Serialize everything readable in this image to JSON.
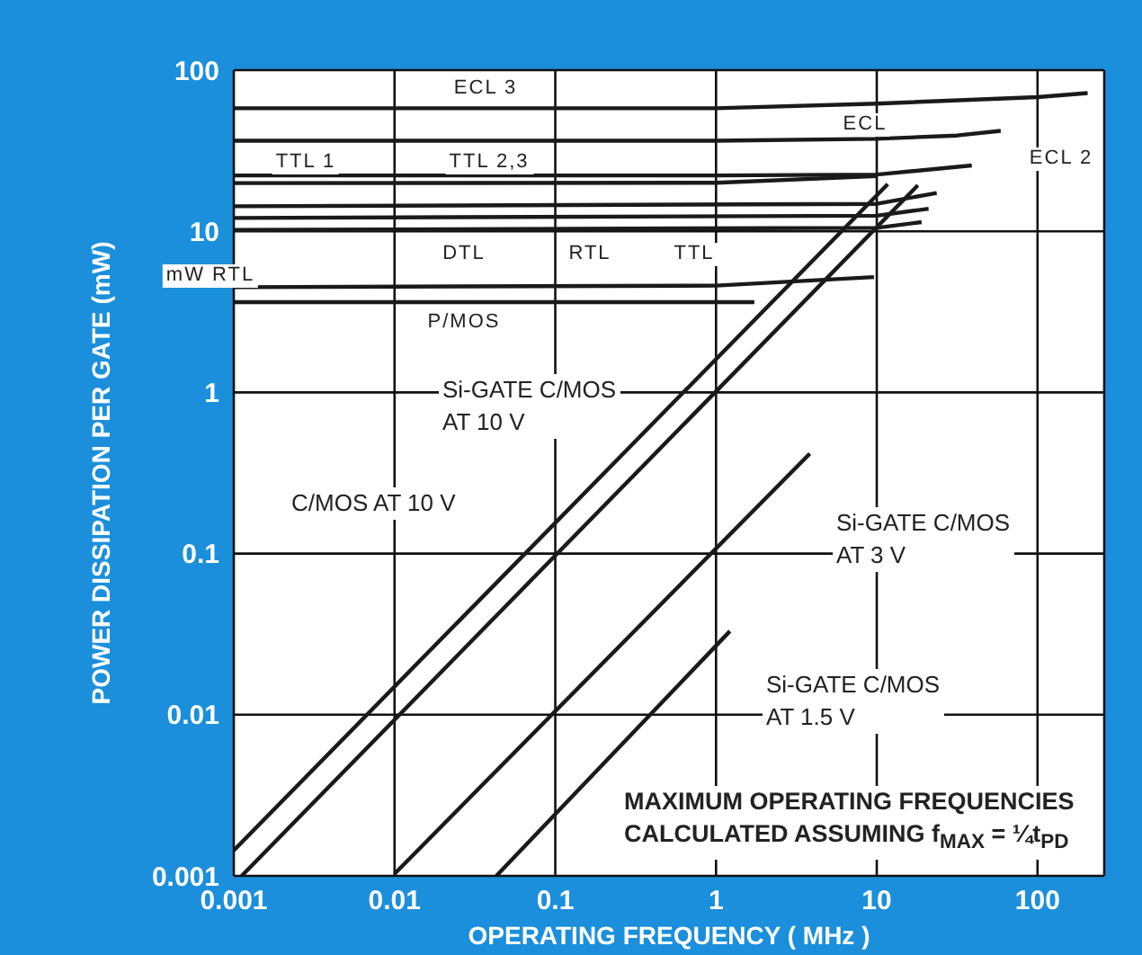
{
  "chart_data": {
    "type": "line",
    "xlabel": "OPERATING FREQUENCY ( MHz )",
    "ylabel": "POWER DISSIPATION PER GATE (mW)",
    "log": "xy",
    "grid": true,
    "marker": "none",
    "line_style": "solid",
    "xlim": [
      0.001,
      260
    ],
    "xticks": [
      0.001,
      0.01,
      0.1,
      1,
      10,
      100
    ],
    "ylim": [
      0.001,
      100
    ],
    "yticks": [
      0.001,
      0.01,
      0.1,
      1,
      10,
      100
    ],
    "series": [
      {
        "color": "#1a1a1a",
        "x": [
          0.001,
          1,
          10,
          100,
          205
        ],
        "values": [
          58,
          58,
          62,
          68,
          72
        ]
      },
      {
        "color": "#1a1a1a",
        "x": [
          0.001,
          1,
          10,
          31.6,
          59
        ],
        "values": [
          36.5,
          36.5,
          37.5,
          39.3,
          42
        ]
      },
      {
        "color": "#1a1a1a",
        "x": [
          0.001,
          1,
          10,
          39
        ],
        "values": [
          22.2,
          22.2,
          22.5,
          25.6
        ]
      },
      {
        "color": "#1a1a1a",
        "x": [
          0.001,
          1,
          10
        ],
        "values": [
          19.9,
          20,
          22
        ]
      },
      {
        "color": "#1a1a1a",
        "x": [
          0.001,
          10,
          23.6
        ],
        "values": [
          14.3,
          14.8,
          17.3
        ]
      },
      {
        "color": "#1a1a1a",
        "x": [
          0.001,
          10,
          21
        ],
        "values": [
          12.1,
          12.5,
          13.8
        ]
      },
      {
        "color": "#1a1a1a",
        "x": [
          0.001,
          10,
          19
        ],
        "values": [
          10.2,
          10.5,
          11.4
        ]
      },
      {
        "color": "#1a1a1a",
        "x": [
          0.001,
          1,
          9.6
        ],
        "values": [
          4.5,
          4.6,
          5.2
        ]
      },
      {
        "color": "#1a1a1a",
        "x": [
          0.001,
          1.73
        ],
        "values": [
          3.63,
          3.63
        ]
      },
      {
        "color": "#1a1a1a",
        "x": [
          0.001,
          11.7
        ],
        "values": [
          0.00144,
          19.6
        ]
      },
      {
        "color": "#1a1a1a",
        "x": [
          0.00112,
          18
        ],
        "values": [
          0.001,
          19.3
        ]
      },
      {
        "color": "#1a1a1a",
        "x": [
          0.01,
          3.83
        ],
        "values": [
          0.00103,
          0.417
        ]
      },
      {
        "color": "#1a1a1a",
        "x": [
          0.043,
          1.22
        ],
        "values": [
          0.001,
          0.033
        ]
      }
    ],
    "annotations": [
      "ECL 3",
      "ECL",
      "ECL 2",
      "TTL 1",
      "TTL 2,3",
      "DTL",
      "RTL",
      "TTL",
      "mW RTL",
      "P/MOS",
      "Si-GATE C/MOS\nAT 10 V",
      "C/MOS AT 10 V",
      "Si-GATE C/MOS\nAT 3 V",
      "Si-GATE C/MOS\nAT 1.5 V",
      "MAXIMUM OPERATING FREQUENCIES\nCALCULATED ASSUMING f$_{MAX}$ = ¼t$_{PD}$"
    ]
  }
}
